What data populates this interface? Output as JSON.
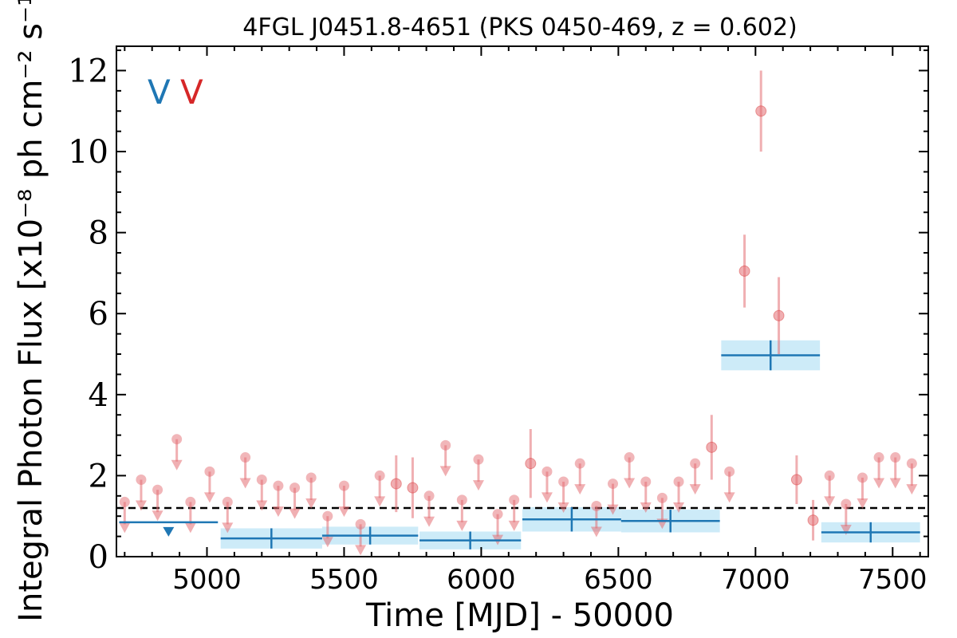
{
  "chart_data": {
    "type": "scatter",
    "title": "4FGL J0451.8-4651 (PKS 0450-469, z = 0.602)",
    "xlabel": "Time [MJD] - 50000",
    "ylabel": "Integral Photon Flux [x10⁻⁸ ph cm⁻² s⁻¹]",
    "xlim": [
      4670,
      7630
    ],
    "ylim": [
      0,
      12.6
    ],
    "xticks": [
      5000,
      5500,
      6000,
      6500,
      7000,
      7500
    ],
    "xtick_labels": [
      "5000",
      "5500",
      "6000",
      "6500",
      "7000",
      "7500"
    ],
    "yticks": [
      0,
      2,
      4,
      6,
      8,
      10,
      12
    ],
    "ytick_labels": [
      "0",
      "2",
      "4",
      "6",
      "8",
      "10",
      "12"
    ],
    "legend": {
      "placement": "top-left",
      "entries": [
        {
          "label": "V",
          "color": "#1f77b4"
        },
        {
          "label": "V",
          "color": "#d62728"
        }
      ]
    },
    "reference_line": {
      "y": 1.2,
      "style": "dashed",
      "color": "#000000"
    },
    "colors": {
      "short_bins": "#e36d73",
      "long_bins": "#1f77b4",
      "long_bins_band": "#cdebf8"
    },
    "series": [
      {
        "color": "#e36d73",
        "marker": "circle",
        "detections": [
          {
            "x": 5690,
            "y": 1.8,
            "yerr": 0.7
          },
          {
            "x": 5750,
            "y": 1.7,
            "yerr": 0.75
          },
          {
            "x": 6180,
            "y": 2.3,
            "yerr": 0.85
          },
          {
            "x": 6840,
            "y": 2.7,
            "yerr": 0.8
          },
          {
            "x": 6960,
            "y": 7.05,
            "yerr": 0.9
          },
          {
            "x": 7020,
            "y": 11.0,
            "yerr": 1.0
          },
          {
            "x": 7085,
            "y": 5.95,
            "yerr": 0.95
          },
          {
            "x": 7150,
            "y": 1.9,
            "yerr": 0.6
          },
          {
            "x": 7210,
            "y": 0.9,
            "yerr": 0.5
          }
        ],
        "upper_limits": [
          {
            "x": 4700,
            "y": 1.35
          },
          {
            "x": 4760,
            "y": 1.9
          },
          {
            "x": 4820,
            "y": 1.65
          },
          {
            "x": 4890,
            "y": 2.9
          },
          {
            "x": 4940,
            "y": 1.35
          },
          {
            "x": 5010,
            "y": 2.1
          },
          {
            "x": 5075,
            "y": 1.35
          },
          {
            "x": 5140,
            "y": 2.45
          },
          {
            "x": 5200,
            "y": 1.9
          },
          {
            "x": 5260,
            "y": 1.75
          },
          {
            "x": 5320,
            "y": 1.7
          },
          {
            "x": 5380,
            "y": 1.95
          },
          {
            "x": 5440,
            "y": 1.0
          },
          {
            "x": 5500,
            "y": 1.75
          },
          {
            "x": 5560,
            "y": 0.8
          },
          {
            "x": 5630,
            "y": 2.0
          },
          {
            "x": 5810,
            "y": 1.5
          },
          {
            "x": 5870,
            "y": 2.75
          },
          {
            "x": 5930,
            "y": 1.4
          },
          {
            "x": 5990,
            "y": 2.4
          },
          {
            "x": 6060,
            "y": 1.05
          },
          {
            "x": 6120,
            "y": 1.4
          },
          {
            "x": 6240,
            "y": 2.1
          },
          {
            "x": 6300,
            "y": 1.85
          },
          {
            "x": 6360,
            "y": 2.3
          },
          {
            "x": 6420,
            "y": 1.25
          },
          {
            "x": 6480,
            "y": 1.8
          },
          {
            "x": 6540,
            "y": 2.45
          },
          {
            "x": 6600,
            "y": 1.85
          },
          {
            "x": 6660,
            "y": 1.45
          },
          {
            "x": 6720,
            "y": 1.85
          },
          {
            "x": 6780,
            "y": 2.3
          },
          {
            "x": 6905,
            "y": 2.1
          },
          {
            "x": 7270,
            "y": 2.0
          },
          {
            "x": 7330,
            "y": 1.3
          },
          {
            "x": 7390,
            "y": 1.95
          },
          {
            "x": 7450,
            "y": 2.45
          },
          {
            "x": 7510,
            "y": 2.45
          },
          {
            "x": 7570,
            "y": 2.3
          }
        ]
      },
      {
        "color": "#1f77b4",
        "marker": "bin",
        "detections": [
          {
            "x": 5235,
            "xerr": 185,
            "y": 0.45,
            "yerr": 0.25
          },
          {
            "x": 5595,
            "xerr": 175,
            "y": 0.52,
            "yerr": 0.22
          },
          {
            "x": 5960,
            "xerr": 185,
            "y": 0.4,
            "yerr": 0.22
          },
          {
            "x": 6330,
            "xerr": 180,
            "y": 0.92,
            "yerr": 0.3
          },
          {
            "x": 6690,
            "xerr": 180,
            "y": 0.88,
            "yerr": 0.28
          },
          {
            "x": 7055,
            "xerr": 180,
            "y": 4.97,
            "yerr": 0.37
          },
          {
            "x": 7420,
            "xerr": 180,
            "y": 0.6,
            "yerr": 0.25
          }
        ],
        "upper_limits": [
          {
            "x": 4860,
            "xerr": 180,
            "y": 0.85
          }
        ]
      }
    ]
  }
}
